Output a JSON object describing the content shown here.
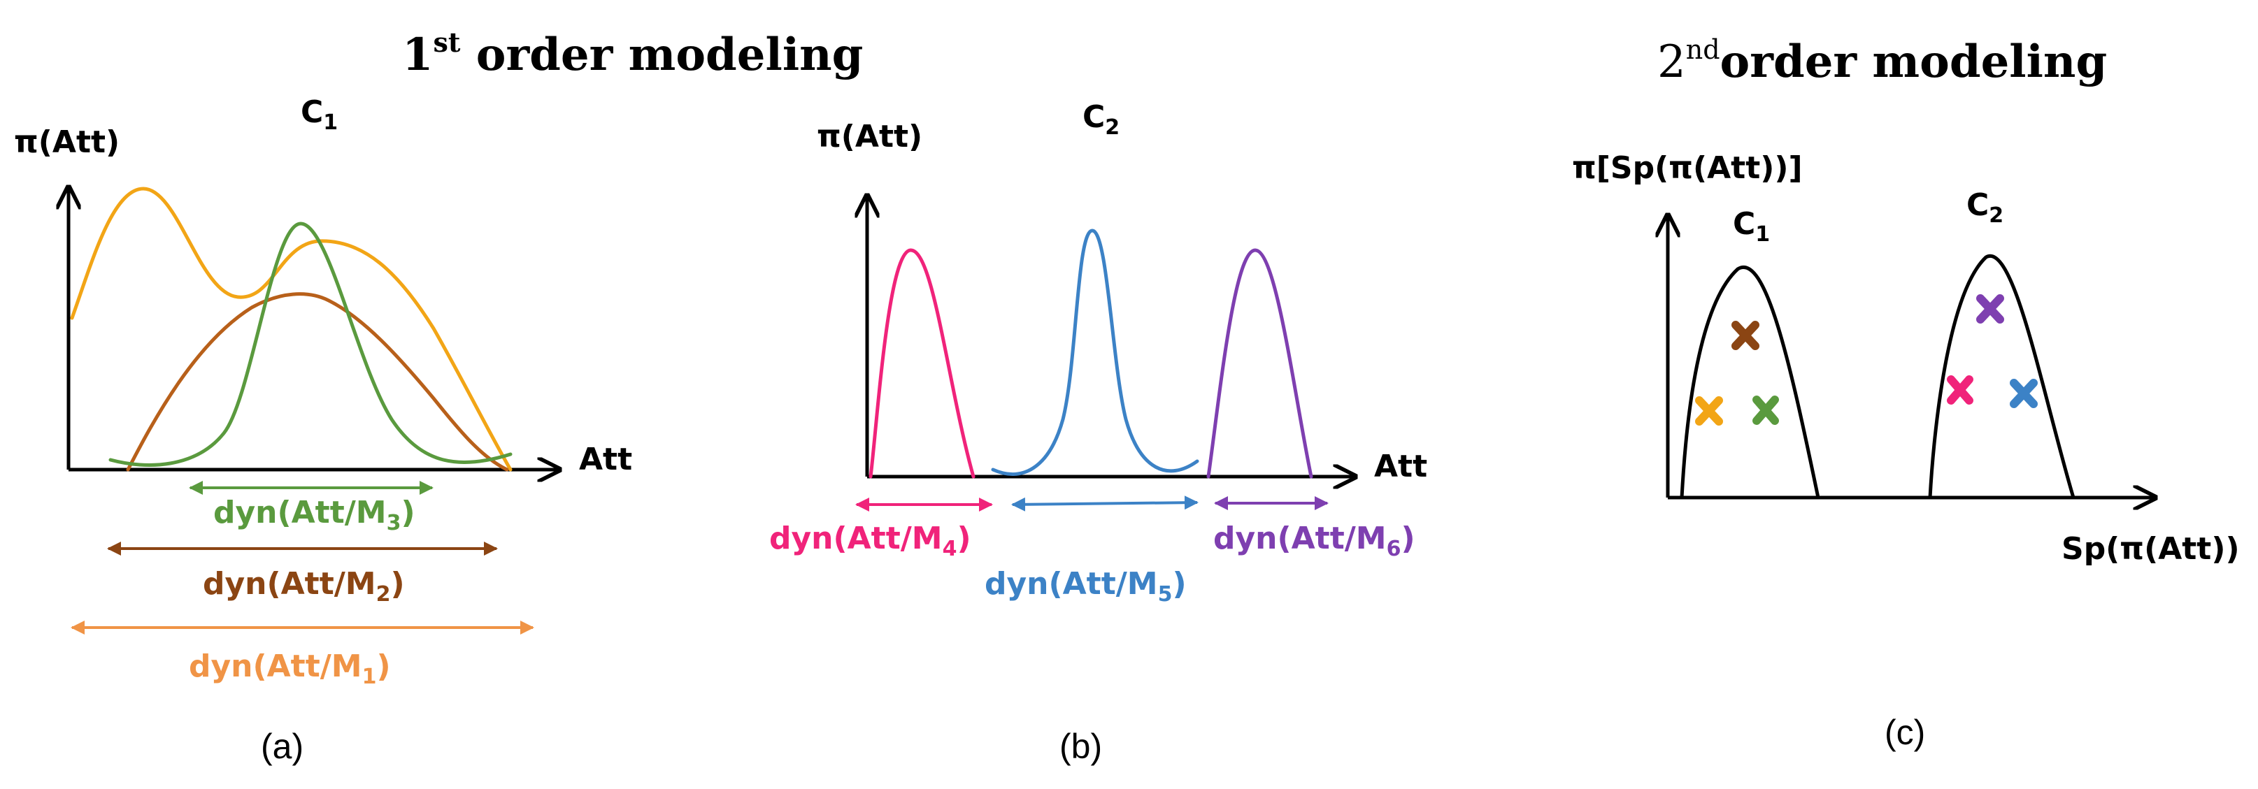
{
  "colors": {
    "orange": "#F2A516",
    "brown": "#B8601A",
    "green": "#5A9A3E",
    "pink": "#F0237A",
    "blue": "#3C82C6",
    "purple": "#7E3FB0",
    "dark_brown": "#8B4513",
    "light_orange": "#F09446",
    "black": "#000000"
  },
  "titles": {
    "first_pre": "1",
    "first_sup": "st",
    "first_post": " order modeling",
    "second_pre": "2",
    "second_sup": "nd",
    "second_post": "order modeling"
  },
  "panel_a": {
    "class_label": "C",
    "class_sub": "1",
    "y_label": "π(Att)",
    "x_label": "Att",
    "dyn": [
      {
        "pre": "dyn(Att/M",
        "sub": "3",
        "post": ")"
      },
      {
        "pre": "dyn(Att/M",
        "sub": "2",
        "post": ")"
      },
      {
        "pre": "dyn(Att/M",
        "sub": "1",
        "post": ")"
      }
    ],
    "caption": "(a)"
  },
  "panel_b": {
    "class_label": "C",
    "class_sub": "2",
    "y_label": "π(Att)",
    "x_label": "Att",
    "dyn": [
      {
        "pre": "dyn(Att/M",
        "sub": "4",
        "post": ")"
      },
      {
        "pre": "dyn(Att/M",
        "sub": "5",
        "post": ")"
      },
      {
        "pre": "dyn(Att/M",
        "sub": "6",
        "post": ")"
      }
    ],
    "caption": "(b)"
  },
  "panel_c": {
    "y_label": "π[Sp(π(Att))]",
    "x_label": "Sp(π(Att))",
    "class1_label": "C",
    "class1_sub": "1",
    "class2_label": "C",
    "class2_sub": "2",
    "caption": "(c)",
    "markers": [
      "x-orange",
      "x-brown",
      "x-green",
      "x-pink",
      "x-blue",
      "x-purple"
    ]
  }
}
